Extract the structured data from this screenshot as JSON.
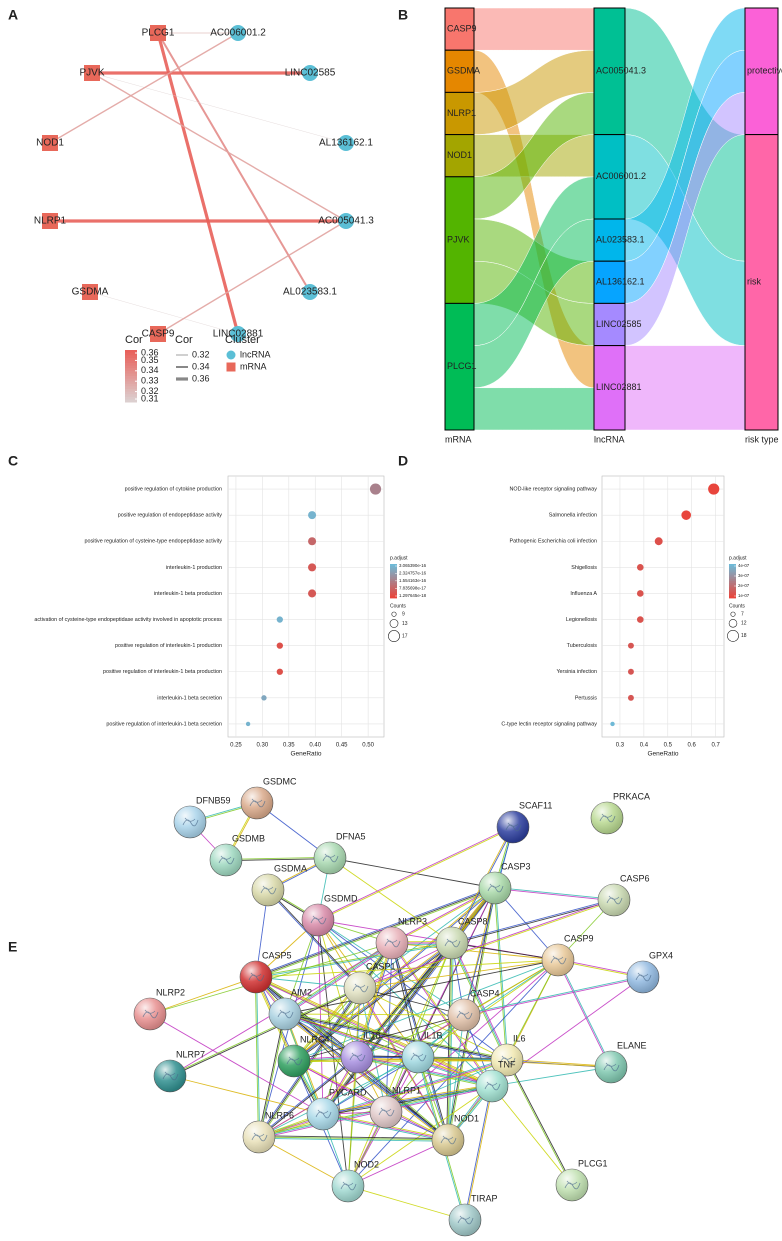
{
  "panel_labels": [
    "A",
    "B",
    "C",
    "D",
    "E"
  ],
  "network": {
    "nodes": [
      {
        "label": "PLCG1",
        "cluster": "mRNA"
      },
      {
        "label": "PJVK",
        "cluster": "mRNA"
      },
      {
        "label": "NOD1",
        "cluster": "mRNA"
      },
      {
        "label": "NLRP1",
        "cluster": "mRNA"
      },
      {
        "label": "GSDMA",
        "cluster": "mRNA"
      },
      {
        "label": "CASP9",
        "cluster": "mRNA"
      },
      {
        "label": "AC006001.2",
        "cluster": "lncRNA"
      },
      {
        "label": "LINC02585",
        "cluster": "lncRNA"
      },
      {
        "label": "AL136162.1",
        "cluster": "lncRNA"
      },
      {
        "label": "AC005041.3",
        "cluster": "lncRNA"
      },
      {
        "label": "AL023583.1",
        "cluster": "lncRNA"
      },
      {
        "label": "LINC02881",
        "cluster": "lncRNA"
      }
    ],
    "edges": [
      {
        "source": "PLCG1",
        "target": "AC006001.2",
        "cor": 0.32
      },
      {
        "source": "PLCG1",
        "target": "LINC02881",
        "cor": 0.36
      },
      {
        "source": "PLCG1",
        "target": "AL023583.1",
        "cor": 0.34
      },
      {
        "source": "PJVK",
        "target": "LINC02585",
        "cor": 0.36
      },
      {
        "source": "PJVK",
        "target": "AL136162.1",
        "cor": 0.31
      },
      {
        "source": "PJVK",
        "target": "AC005041.3",
        "cor": 0.33
      },
      {
        "source": "NOD1",
        "target": "AC006001.2",
        "cor": 0.33
      },
      {
        "source": "NLRP1",
        "target": "AC005041.3",
        "cor": 0.36
      },
      {
        "source": "GSDMA",
        "target": "LINC02881",
        "cor": 0.31
      },
      {
        "source": "CASP9",
        "target": "AC005041.3",
        "cor": 0.33
      }
    ],
    "color_range": [
      "#dccfcf",
      "#e8605a"
    ],
    "legend": {
      "color_title": "Cor",
      "color_ticks": [
        0.36,
        0.35,
        0.34,
        0.33,
        0.32,
        0.31
      ],
      "width_title": "Cor",
      "width_ticks": [
        0.32,
        0.34,
        0.36
      ],
      "cluster_title": "Cluster",
      "clusters": [
        {
          "name": "lncRNA",
          "color": "#5bbfd6"
        },
        {
          "name": "mRNA",
          "color": "#e8685a"
        }
      ]
    }
  },
  "sankey": {
    "stages": [
      "mRNA",
      "lncRNA",
      "risk type"
    ],
    "nodes": [
      [
        {
          "name": "CASP9",
          "color": "#f8766d"
        },
        {
          "name": "GSDMA",
          "color": "#e58700"
        },
        {
          "name": "NLRP1",
          "color": "#c99800"
        },
        {
          "name": "NOD1",
          "color": "#a3a500"
        },
        {
          "name": "PJVK",
          "color": "#53b400"
        },
        {
          "name": "PLCG1",
          "color": "#00bc56"
        }
      ],
      [
        {
          "name": "AC005041.3",
          "color": "#00c094"
        },
        {
          "name": "AC006001.2",
          "color": "#00bfc4"
        },
        {
          "name": "AL023583.1",
          "color": "#00b6eb"
        },
        {
          "name": "AL136162.1",
          "color": "#06a4ff"
        },
        {
          "name": "LINC02585",
          "color": "#a58aff"
        },
        {
          "name": "LINC02881",
          "color": "#df70f8"
        }
      ],
      [
        {
          "name": "protective",
          "color": "#fb61d7"
        },
        {
          "name": "risk",
          "color": "#ff66a8"
        }
      ]
    ],
    "links": [
      {
        "source": "CASP9",
        "target": "AC005041.3",
        "value": 1
      },
      {
        "source": "GSDMA",
        "target": "LINC02881",
        "value": 1
      },
      {
        "source": "NLRP1",
        "target": "AC005041.3",
        "value": 1
      },
      {
        "source": "NOD1",
        "target": "AC006001.2",
        "value": 1
      },
      {
        "source": "PJVK",
        "target": "AC005041.3",
        "value": 1
      },
      {
        "source": "PJVK",
        "target": "AL136162.1",
        "value": 1
      },
      {
        "source": "PJVK",
        "target": "LINC02585",
        "value": 1
      },
      {
        "source": "PLCG1",
        "target": "AC006001.2",
        "value": 1
      },
      {
        "source": "PLCG1",
        "target": "AL023583.1",
        "value": 1
      },
      {
        "source": "PLCG1",
        "target": "LINC02881",
        "value": 1
      },
      {
        "source": "AC005041.3",
        "target": "risk",
        "value": 3
      },
      {
        "source": "AC006001.2",
        "target": "risk",
        "value": 2
      },
      {
        "source": "AL023583.1",
        "target": "protective",
        "value": 1
      },
      {
        "source": "AL136162.1",
        "target": "protective",
        "value": 1
      },
      {
        "source": "LINC02585",
        "target": "protective",
        "value": 1
      },
      {
        "source": "LINC02881",
        "target": "risk",
        "value": 2
      }
    ]
  },
  "chart_data": [
    {
      "type": "dot",
      "x_label": "GeneRatio",
      "categories": [
        "positive regulation of cytokine production",
        "positive regulation of endopeptidase activity",
        "positive regulation of cysteine-type endopeptidase activity",
        "interleukin-1 production",
        "interleukin-1 beta production",
        "activation of cysteine-type endopeptidase activity involved in apoptotic process",
        "positive regulation of interleukin-1 production",
        "positive regulation of interleukin-1 beta production",
        "interleukin-1 beta secretion",
        "positive regulation of interleukin-1 beta secretion"
      ],
      "values": [
        0.514,
        0.394,
        0.394,
        0.394,
        0.394,
        0.333,
        0.333,
        0.333,
        0.303,
        0.273
      ],
      "sizes": [
        17,
        13,
        13,
        13,
        13,
        11,
        11,
        11,
        10,
        9
      ],
      "color_values": [
        1.6e-16,
        2.9e-16,
        9e-17,
        5e-17,
        5e-17,
        2.9e-16,
        3e-17,
        3e-17,
        2.6e-16,
        2.9e-16
      ],
      "xlim": [
        0.235,
        0.53
      ],
      "xticks": [
        0.25,
        {
          "value": 0.3,
          "label": "0.30"
        },
        0.35,
        {
          "value": 0.4,
          "label": "0.40"
        },
        0.45,
        {
          "value": 0.5,
          "label": "0.50"
        }
      ],
      "grid": true,
      "colors": [
        "#e8453c",
        "#6fb9d6"
      ],
      "color_title": "p.adjust",
      "color_ticks": [
        {
          "value": 3.06539e-16,
          "label": "3.065390e-16"
        },
        {
          "value": 2.324757e-16,
          "label": "2.324757e-16"
        },
        {
          "value": 1.554163e-16,
          "label": "1.554163e-16"
        },
        {
          "value": 7.835698e-17,
          "label": "7.835698e-17"
        },
        {
          "value": 1.297645e-18,
          "label": "1.297645e-18"
        }
      ],
      "size_title": "Counts",
      "size_ticks": [
        9,
        13,
        17
      ]
    },
    {
      "type": "dot",
      "x_label": "GeneRatio",
      "categories": [
        "NOD-like receptor signaling pathway",
        "Salmonella infection",
        "Pathogenic Escherichia coli infection",
        "Shigellosis",
        "Influenza A",
        "Legionellosis",
        "Tuberculosis",
        "Yersinia infection",
        "Pertussis",
        "C-type lectin receptor signaling pathway"
      ],
      "values": [
        0.692,
        0.577,
        0.462,
        0.385,
        0.385,
        0.385,
        0.346,
        0.346,
        0.346,
        0.269
      ],
      "sizes": [
        18,
        15,
        12,
        10,
        10,
        10,
        9,
        9,
        9,
        7
      ],
      "color_values": [
        8e-08,
        8e-08,
        1.1e-07,
        1.2e-07,
        1.2e-07,
        1.2e-07,
        1.3e-07,
        1.3e-07,
        1.3e-07,
        4.2e-07
      ],
      "xlim": [
        0.225,
        0.735
      ],
      "xticks": [
        0.3,
        0.4,
        0.5,
        0.6,
        0.7
      ],
      "grid": true,
      "colors": [
        "#e8453c",
        "#6fb9d6"
      ],
      "color_title": "p.adjust",
      "color_ticks": [
        {
          "value": 4e-07,
          "label": "4e-07"
        },
        {
          "value": 3e-07,
          "label": "3e-07"
        },
        {
          "value": 2e-07,
          "label": "2e-07"
        },
        {
          "value": 1e-07,
          "label": "1e-07"
        }
      ],
      "size_title": "Counts",
      "size_ticks": [
        7,
        12,
        18
      ]
    }
  ],
  "ppi": {
    "nodes": [
      {
        "label": "DFNB59",
        "color": "#a9d3ea"
      },
      {
        "label": "GSDMC",
        "color": "#d9a98a"
      },
      {
        "label": "GSDMB",
        "color": "#9ed8c0"
      },
      {
        "label": "DFNA5",
        "color": "#a8d8b0"
      },
      {
        "label": "SCAF11",
        "color": "#2c3e9e"
      },
      {
        "label": "PRKACA",
        "color": "#b8d890"
      },
      {
        "label": "GSDMA",
        "color": "#d8d8a8"
      },
      {
        "label": "CASP3",
        "color": "#a8d8a8"
      },
      {
        "label": "CASP6",
        "color": "#c8d8b0"
      },
      {
        "label": "GSDMD",
        "color": "#d88aa8"
      },
      {
        "label": "NLRP3",
        "color": "#e8b0b8"
      },
      {
        "label": "CASP8",
        "color": "#c8d8b0"
      },
      {
        "label": "CASP9",
        "color": "#e8c898"
      },
      {
        "label": "GPX4",
        "color": "#90b8e0"
      },
      {
        "label": "CASP5",
        "color": "#d03030"
      },
      {
        "label": "CASP1",
        "color": "#e0e0c0"
      },
      {
        "label": "NLRP2",
        "color": "#e89090"
      },
      {
        "label": "AIM2",
        "color": "#a8d0e0"
      },
      {
        "label": "CASP4",
        "color": "#e0c0a8"
      },
      {
        "label": "NLRC4",
        "color": "#30a060"
      },
      {
        "label": "IL18",
        "color": "#a890e0"
      },
      {
        "label": "IL1B",
        "color": "#a0d8e0"
      },
      {
        "label": "IL6",
        "color": "#f0e8b0"
      },
      {
        "label": "ELANE",
        "color": "#80c8b0"
      },
      {
        "label": "NLRP7",
        "color": "#309090"
      },
      {
        "label": "TNF",
        "color": "#a0e0d0"
      },
      {
        "label": "PYCARD",
        "color": "#a8d8e8"
      },
      {
        "label": "NLRP1",
        "color": "#e0c8c8"
      },
      {
        "label": "NOD1",
        "color": "#d8c890"
      },
      {
        "label": "NLRP6",
        "color": "#e8e0b8"
      },
      {
        "label": "NOD2",
        "color": "#a0d8d0"
      },
      {
        "label": "PLCG1",
        "color": "#c0e0b0"
      },
      {
        "label": "TIRAP",
        "color": "#a0c8c8"
      }
    ]
  }
}
